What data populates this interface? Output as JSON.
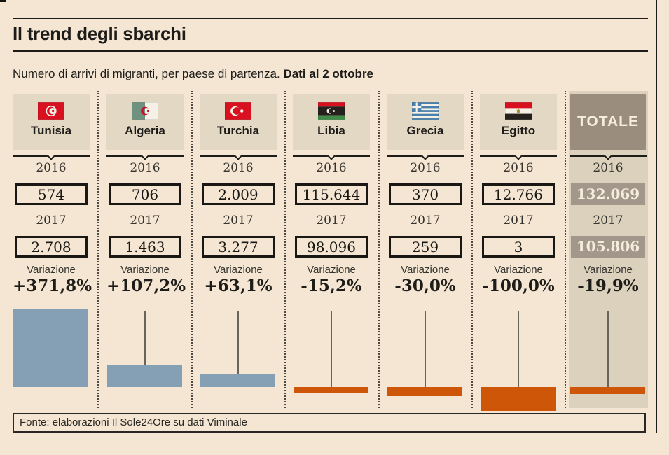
{
  "title": "Il trend degli sbarchi",
  "subtitle": {
    "normal": "Numero di arrivi di migranti, per paese di partenza. ",
    "bold": "Dati al 2 ottobre"
  },
  "labels": {
    "y2016": "2016",
    "y2017": "2017",
    "variation": "Variazione"
  },
  "footer": "Fonte: elaborazioni Il Sole24Ore su dati Viminale",
  "colors": {
    "background": "#f4e6d2",
    "header_panel": "#e3d8c3",
    "totale_panel": "#dcd1bd",
    "totale_header": "#9a8d7d",
    "totale_value_box": "#a2978a",
    "positive_bar": "#85a0b5",
    "negative_bar": "#cd5609",
    "ink": "#1d1c19"
  },
  "columns": [
    {
      "name": "Tunisia",
      "v2016": "574",
      "v2017": "2.708",
      "variation_label": "+371,8%",
      "variation_value": 371.8
    },
    {
      "name": "Algeria",
      "v2016": "706",
      "v2017": "1.463",
      "variation_label": "+107,2%",
      "variation_value": 107.2
    },
    {
      "name": "Turchia",
      "v2016": "2.009",
      "v2017": "3.277",
      "variation_label": "+63,1%",
      "variation_value": 63.1
    },
    {
      "name": "Libia",
      "v2016": "115.644",
      "v2017": "98.096",
      "variation_label": "-15,2%",
      "variation_value": -15.2
    },
    {
      "name": "Grecia",
      "v2016": "370",
      "v2017": "259",
      "variation_label": "-30,0%",
      "variation_value": -30.0
    },
    {
      "name": "Egitto",
      "v2016": "12.766",
      "v2017": "3",
      "variation_label": "-100,0%",
      "variation_value": -100.0
    },
    {
      "name": "TOTALE",
      "v2016": "132.069",
      "v2017": "105.806",
      "variation_label": "-19,9%",
      "variation_value": -19.9
    }
  ],
  "chart_data": {
    "type": "bar",
    "title": "Il trend degli sbarchi",
    "subtitle": "Numero di arrivi di migranti, per paese di partenza. Dati al 2 ottobre",
    "categories": [
      "Tunisia",
      "Algeria",
      "Turchia",
      "Libia",
      "Grecia",
      "Egitto",
      "Totale"
    ],
    "series": [
      {
        "name": "2016",
        "values": [
          574,
          706,
          2009,
          115644,
          370,
          12766,
          132069
        ]
      },
      {
        "name": "2017",
        "values": [
          2708,
          1463,
          3277,
          98096,
          259,
          3,
          105806
        ]
      },
      {
        "name": "Variazione %",
        "values": [
          371.8,
          107.2,
          63.1,
          -15.2,
          -30.0,
          -100.0,
          -19.9
        ]
      }
    ],
    "note": "Mini bar under each country depicts Variazione %: blue above baseline = increase, orange below baseline = decrease",
    "source": "Fonte: elaborazioni Il Sole24Ore su dati Viminale"
  }
}
